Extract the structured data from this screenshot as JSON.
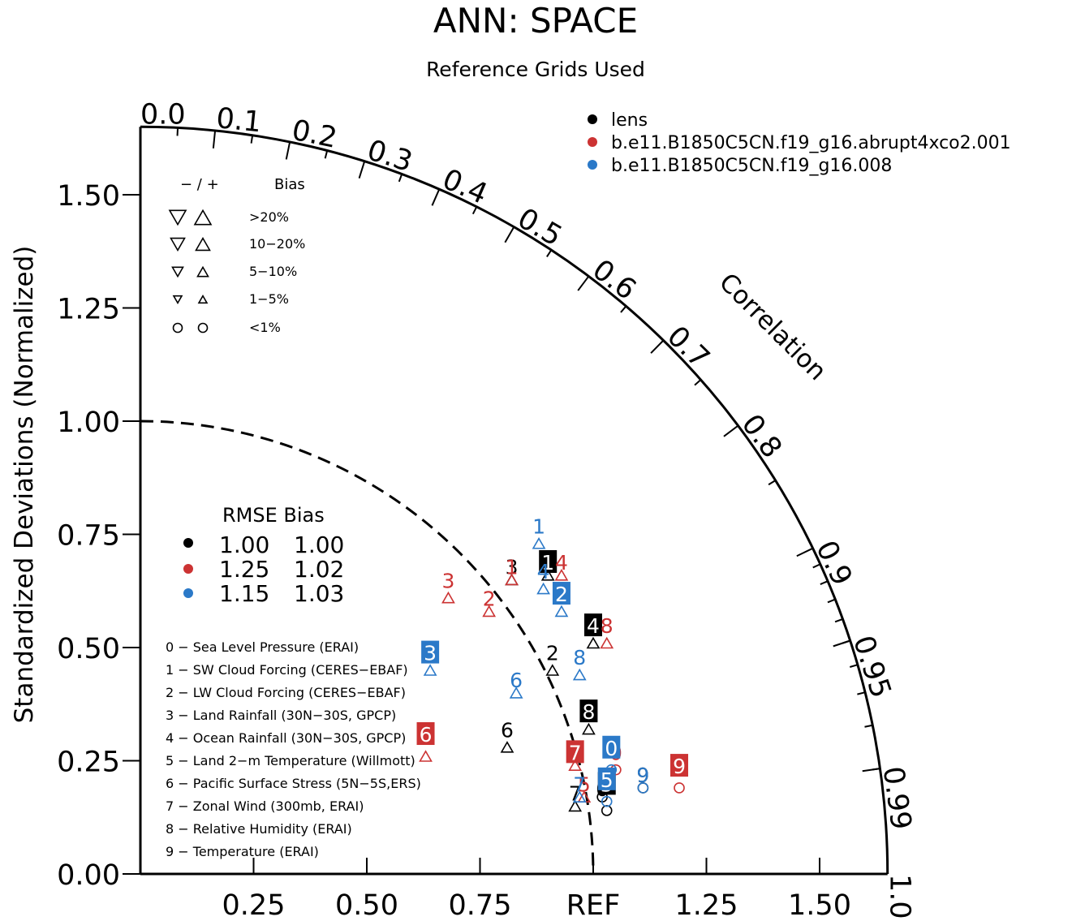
{
  "colors": {
    "axis": "#000000",
    "lens": "#000000",
    "case1": "#cc3333",
    "case2": "#2b79c8",
    "box_text": "#ffffff"
  },
  "chart_data": {
    "type": "scatter",
    "subtype": "taylor-diagram",
    "title": "ANN: SPACE",
    "subtitle": "Reference Grids Used",
    "ylabel": "Standardized Deviations (Normalized)",
    "corr_label": "Correlation",
    "ref_label": "REF",
    "std_max": 1.65,
    "y_ticks": [
      "0.00",
      "0.25",
      "0.50",
      "0.75",
      "1.00",
      "1.25",
      "1.50"
    ],
    "x_ticks": [
      "0.25",
      "0.50",
      "0.75",
      "REF",
      "1.25",
      "1.50"
    ],
    "corr_ticks": [
      "0.0",
      "0.1",
      "0.2",
      "0.3",
      "0.4",
      "0.5",
      "0.6",
      "0.7",
      "0.8",
      "0.9",
      "0.95",
      "0.99",
      "1.0"
    ],
    "ref_circle_radius": 1.0,
    "series_legend": [
      {
        "name": "lens",
        "color": "#000000"
      },
      {
        "name": "b.e11.B1850C5CN.f19_g16.abrupt4xco2.001",
        "color": "#cc3333"
      },
      {
        "name": "b.e11.B1850C5CN.f19_g16.008",
        "color": "#2b79c8"
      }
    ],
    "bias_legend": {
      "header_sign": "− / +",
      "header_bias": "Bias",
      "rows": [
        {
          "label": ">20%",
          "marker": "triangle",
          "size": 20
        },
        {
          "label": "10−20%",
          "marker": "triangle",
          "size": 17
        },
        {
          "label": "5−10%",
          "marker": "triangle",
          "size": 13
        },
        {
          "label": "1−5%",
          "marker": "triangle",
          "size": 10
        },
        {
          "label": "<1%",
          "marker": "circle",
          "size": 11
        }
      ]
    },
    "rmse_table": {
      "header": "RMSE Bias",
      "rows": [
        {
          "color": "#000000",
          "rmse": "1.00",
          "bias": "1.00"
        },
        {
          "color": "#cc3333",
          "rmse": "1.25",
          "bias": "1.02"
        },
        {
          "color": "#2b79c8",
          "rmse": "1.15",
          "bias": "1.03"
        }
      ]
    },
    "variables": [
      "0 − Sea Level Pressure (ERAI)",
      "1 − SW Cloud Forcing (CERES−EBAF)",
      "2 − LW Cloud Forcing (CERES−EBAF)",
      "3 − Land Rainfall (30N−30S, GPCP)",
      "4 − Ocean Rainfall (30N−30S, GPCP)",
      "5 − Land 2−m Temperature (Willmott)",
      "6 − Pacific Surface Stress (5N−5S,ERS)",
      "7 − Zonal Wind (300mb, ERAI)",
      "8 − Relative Humidity (ERAI)",
      "9 − Temperature (ERAI)"
    ],
    "series": [
      {
        "name": "lens",
        "color": "#000000",
        "points": [
          {
            "id": "0",
            "x": 1.02,
            "y": 0.17,
            "marker": "circle",
            "label_x": 1.02,
            "label_y": 0.19,
            "boxed": false
          },
          {
            "id": "1",
            "x": 0.9,
            "y": 0.66,
            "marker": "triangle",
            "label_x": 0.9,
            "label_y": 0.69,
            "boxed": true
          },
          {
            "id": "2",
            "x": 0.91,
            "y": 0.45,
            "marker": "triangle",
            "label_x": 0.91,
            "label_y": 0.49,
            "boxed": false
          },
          {
            "id": "3",
            "x": 0.82,
            "y": 0.65,
            "marker": "triangle",
            "label_x": 0.82,
            "label_y": 0.68,
            "boxed": false
          },
          {
            "id": "4",
            "x": 1.0,
            "y": 0.51,
            "marker": "triangle",
            "label_x": 1.0,
            "label_y": 0.55,
            "boxed": true
          },
          {
            "id": "5",
            "x": 1.03,
            "y": 0.14,
            "marker": "circle",
            "label_x": 1.03,
            "label_y": 0.2,
            "boxed": true
          },
          {
            "id": "6",
            "x": 0.81,
            "y": 0.28,
            "marker": "triangle",
            "label_x": 0.81,
            "label_y": 0.32,
            "boxed": false
          },
          {
            "id": "7",
            "x": 0.96,
            "y": 0.15,
            "marker": "triangle",
            "label_x": 0.96,
            "label_y": 0.18,
            "boxed": false
          },
          {
            "id": "8",
            "x": 0.99,
            "y": 0.32,
            "marker": "triangle",
            "label_x": 0.99,
            "label_y": 0.36,
            "boxed": true
          },
          {
            "id": "9",
            "x": 1.11,
            "y": 0.19,
            "marker": "circle",
            "label_x": 1.11,
            "label_y": 0.22,
            "boxed": false
          }
        ]
      },
      {
        "name": "b.e11.B1850C5CN.f19_g16.abrupt4xco2.001",
        "color": "#cc3333",
        "points": [
          {
            "id": "0",
            "x": 1.05,
            "y": 0.23,
            "marker": "circle",
            "label_x": 1.05,
            "label_y": 0.27,
            "boxed": false
          },
          {
            "id": "1",
            "x": 0.82,
            "y": 0.65,
            "marker": "triangle",
            "label_x": 0.82,
            "label_y": 0.68,
            "boxed": false
          },
          {
            "id": "2",
            "x": 0.77,
            "y": 0.58,
            "marker": "triangle",
            "label_x": 0.77,
            "label_y": 0.61,
            "boxed": false
          },
          {
            "id": "3",
            "x": 0.68,
            "y": 0.61,
            "marker": "triangle",
            "label_x": 0.68,
            "label_y": 0.65,
            "boxed": false
          },
          {
            "id": "4",
            "x": 0.93,
            "y": 0.66,
            "marker": "triangle",
            "label_x": 0.93,
            "label_y": 0.69,
            "boxed": false
          },
          {
            "id": "5",
            "x": 0.98,
            "y": 0.17,
            "marker": "triangle",
            "label_x": 0.98,
            "label_y": 0.2,
            "boxed": false
          },
          {
            "id": "6",
            "x": 0.63,
            "y": 0.26,
            "marker": "triangle",
            "label_x": 0.63,
            "label_y": 0.31,
            "boxed": true
          },
          {
            "id": "7",
            "x": 0.96,
            "y": 0.24,
            "marker": "triangle",
            "label_x": 0.96,
            "label_y": 0.27,
            "boxed": true
          },
          {
            "id": "8",
            "x": 1.03,
            "y": 0.51,
            "marker": "triangle",
            "label_x": 1.03,
            "label_y": 0.55,
            "boxed": false
          },
          {
            "id": "9",
            "x": 1.19,
            "y": 0.19,
            "marker": "circle",
            "label_x": 1.19,
            "label_y": 0.24,
            "boxed": true
          }
        ]
      },
      {
        "name": "b.e11.B1850C5CN.f19_g16.008",
        "color": "#2b79c8",
        "points": [
          {
            "id": "0",
            "x": 1.04,
            "y": 0.23,
            "marker": "circle",
            "label_x": 1.04,
            "label_y": 0.28,
            "boxed": true
          },
          {
            "id": "1",
            "x": 0.88,
            "y": 0.73,
            "marker": "triangle",
            "label_x": 0.88,
            "label_y": 0.77,
            "boxed": false
          },
          {
            "id": "2",
            "x": 0.93,
            "y": 0.58,
            "marker": "triangle",
            "label_x": 0.93,
            "label_y": 0.62,
            "boxed": true
          },
          {
            "id": "3",
            "x": 0.64,
            "y": 0.45,
            "marker": "triangle",
            "label_x": 0.64,
            "label_y": 0.49,
            "boxed": true
          },
          {
            "id": "4",
            "x": 0.89,
            "y": 0.63,
            "marker": "triangle",
            "label_x": 0.89,
            "label_y": 0.67,
            "boxed": false
          },
          {
            "id": "5",
            "x": 1.03,
            "y": 0.16,
            "marker": "circle",
            "label_x": 1.03,
            "label_y": 0.21,
            "boxed": true
          },
          {
            "id": "6",
            "x": 0.83,
            "y": 0.4,
            "marker": "triangle",
            "label_x": 0.83,
            "label_y": 0.43,
            "boxed": false
          },
          {
            "id": "7",
            "x": 0.97,
            "y": 0.17,
            "marker": "triangle",
            "label_x": 0.97,
            "label_y": 0.2,
            "boxed": false
          },
          {
            "id": "8",
            "x": 0.97,
            "y": 0.44,
            "marker": "triangle",
            "label_x": 0.97,
            "label_y": 0.48,
            "boxed": false
          },
          {
            "id": "9",
            "x": 1.11,
            "y": 0.19,
            "marker": "circle",
            "label_x": 1.11,
            "label_y": 0.22,
            "boxed": false
          }
        ]
      }
    ]
  }
}
